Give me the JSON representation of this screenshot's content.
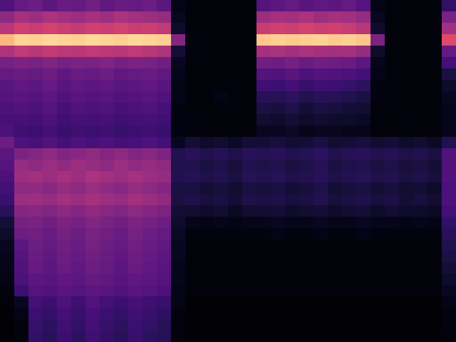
{
  "chart_data": {
    "type": "heatmap",
    "tick_labels": false,
    "color": "magma",
    "zlim": [
      0,
      100
    ],
    "z": [
      [
        25,
        30,
        32,
        28,
        31,
        30,
        33,
        29,
        31,
        30,
        32,
        28,
        4,
        2,
        2,
        2,
        2,
        2,
        26,
        28,
        30,
        27,
        29,
        28,
        30,
        26,
        4,
        2,
        2,
        2,
        2,
        18
      ],
      [
        40,
        46,
        44,
        47,
        45,
        43,
        46,
        44,
        47,
        45,
        44,
        42,
        6,
        2,
        2,
        2,
        2,
        2,
        44,
        46,
        45,
        47,
        44,
        46,
        45,
        42,
        6,
        2,
        2,
        2,
        2,
        35
      ],
      [
        50,
        56,
        54,
        57,
        55,
        53,
        56,
        55,
        57,
        54,
        55,
        52,
        8,
        2,
        2,
        2,
        2,
        2,
        54,
        56,
        55,
        57,
        55,
        56,
        54,
        50,
        8,
        2,
        2,
        2,
        2,
        45
      ],
      [
        85,
        91,
        90,
        92,
        91,
        90,
        92,
        91,
        90,
        92,
        91,
        90,
        38,
        3,
        2,
        2,
        2,
        2,
        88,
        90,
        89,
        90,
        91,
        89,
        90,
        88,
        36,
        2,
        2,
        2,
        2,
        60
      ],
      [
        48,
        52,
        50,
        53,
        51,
        50,
        52,
        51,
        50,
        52,
        50,
        48,
        10,
        3,
        2,
        2,
        2,
        2,
        46,
        47,
        45,
        47,
        46,
        45,
        46,
        42,
        8,
        2,
        2,
        2,
        2,
        30
      ],
      [
        34,
        36,
        35,
        37,
        34,
        36,
        35,
        37,
        34,
        36,
        35,
        33,
        6,
        2,
        2,
        2,
        2,
        2,
        33,
        32,
        34,
        31,
        33,
        32,
        31,
        28,
        5,
        2,
        2,
        2,
        2,
        22
      ],
      [
        30,
        31,
        30,
        32,
        29,
        31,
        30,
        32,
        29,
        30,
        31,
        29,
        5,
        2,
        2,
        2,
        2,
        2,
        26,
        25,
        27,
        24,
        26,
        25,
        24,
        22,
        4,
        2,
        2,
        2,
        2,
        12
      ],
      [
        27,
        29,
        28,
        30,
        27,
        29,
        28,
        29,
        27,
        28,
        29,
        27,
        4,
        2,
        2,
        2,
        2,
        2,
        21,
        20,
        22,
        19,
        21,
        20,
        19,
        17,
        3,
        2,
        2,
        2,
        2,
        8
      ],
      [
        26,
        27,
        26,
        28,
        25,
        27,
        26,
        27,
        25,
        26,
        27,
        25,
        4,
        2,
        2,
        4,
        2,
        2,
        16,
        15,
        17,
        14,
        16,
        15,
        14,
        12,
        3,
        2,
        2,
        2,
        2,
        6
      ],
      [
        24,
        25,
        24,
        26,
        23,
        25,
        24,
        25,
        23,
        24,
        25,
        23,
        3,
        2,
        2,
        2,
        2,
        2,
        12,
        11,
        13,
        10,
        12,
        11,
        10,
        9,
        2,
        2,
        2,
        2,
        2,
        5
      ],
      [
        23,
        23,
        22,
        24,
        21,
        23,
        22,
        23,
        21,
        22,
        23,
        21,
        3,
        3,
        2,
        2,
        2,
        2,
        9,
        8,
        10,
        8,
        9,
        8,
        8,
        7,
        2,
        2,
        3,
        2,
        2,
        5
      ],
      [
        24,
        21,
        20,
        22,
        19,
        21,
        20,
        21,
        19,
        20,
        21,
        19,
        3,
        2,
        2,
        2,
        2,
        2,
        6,
        6,
        7,
        5,
        6,
        6,
        5,
        5,
        2,
        2,
        2,
        2,
        2,
        5
      ],
      [
        32,
        24,
        23,
        25,
        22,
        24,
        23,
        24,
        22,
        23,
        24,
        22,
        6,
        10,
        8,
        9,
        7,
        10,
        10,
        11,
        9,
        10,
        12,
        9,
        10,
        11,
        9,
        10,
        8,
        9,
        7,
        14
      ],
      [
        28,
        36,
        38,
        40,
        37,
        39,
        41,
        38,
        40,
        37,
        39,
        36,
        14,
        16,
        14,
        15,
        13,
        16,
        15,
        16,
        14,
        15,
        17,
        14,
        15,
        16,
        14,
        15,
        13,
        14,
        12,
        25
      ],
      [
        26,
        42,
        40,
        43,
        41,
        44,
        42,
        40,
        43,
        41,
        42,
        40,
        14,
        14,
        12,
        13,
        11,
        14,
        13,
        14,
        12,
        13,
        15,
        12,
        13,
        14,
        12,
        13,
        11,
        12,
        10,
        25
      ],
      [
        24,
        44,
        45,
        43,
        46,
        44,
        47,
        45,
        43,
        46,
        44,
        42,
        14,
        15,
        13,
        14,
        12,
        15,
        14,
        15,
        13,
        14,
        16,
        13,
        14,
        15,
        13,
        14,
        12,
        13,
        11,
        25
      ],
      [
        22,
        40,
        41,
        39,
        42,
        40,
        43,
        41,
        39,
        42,
        40,
        38,
        12,
        12,
        10,
        11,
        9,
        12,
        11,
        12,
        10,
        11,
        13,
        10,
        11,
        12,
        10,
        11,
        9,
        10,
        8,
        24
      ],
      [
        20,
        43,
        44,
        42,
        45,
        43,
        46,
        44,
        42,
        45,
        43,
        41,
        12,
        13,
        11,
        12,
        10,
        13,
        12,
        13,
        11,
        12,
        14,
        11,
        12,
        13,
        11,
        12,
        10,
        11,
        9,
        24
      ],
      [
        16,
        38,
        39,
        37,
        40,
        38,
        41,
        39,
        37,
        40,
        38,
        36,
        10,
        9,
        8,
        9,
        7,
        9,
        9,
        10,
        8,
        9,
        10,
        8,
        9,
        10,
        8,
        9,
        8,
        8,
        7,
        22
      ],
      [
        10,
        34,
        35,
        33,
        36,
        34,
        37,
        35,
        33,
        36,
        34,
        32,
        8,
        5,
        4,
        5,
        4,
        5,
        5,
        6,
        5,
        5,
        6,
        5,
        5,
        6,
        5,
        5,
        4,
        5,
        4,
        18
      ],
      [
        8,
        32,
        33,
        31,
        34,
        32,
        35,
        33,
        31,
        34,
        32,
        30,
        7,
        3,
        3,
        3,
        3,
        3,
        3,
        4,
        3,
        3,
        4,
        3,
        3,
        4,
        3,
        3,
        3,
        3,
        3,
        16
      ],
      [
        6,
        28,
        32,
        30,
        33,
        31,
        34,
        32,
        30,
        33,
        31,
        29,
        6,
        2,
        2,
        2,
        2,
        2,
        2,
        2,
        2,
        2,
        2,
        2,
        2,
        2,
        2,
        2,
        2,
        2,
        2,
        14
      ],
      [
        5,
        26,
        31,
        29,
        32,
        30,
        33,
        31,
        29,
        32,
        30,
        28,
        6,
        2,
        2,
        2,
        2,
        2,
        2,
        2,
        2,
        2,
        2,
        2,
        2,
        2,
        2,
        2,
        2,
        2,
        2,
        12
      ],
      [
        5,
        25,
        30,
        28,
        31,
        29,
        32,
        30,
        28,
        31,
        29,
        27,
        5,
        2,
        2,
        2,
        2,
        2,
        2,
        2,
        2,
        2,
        2,
        2,
        2,
        2,
        2,
        2,
        2,
        2,
        2,
        10
      ],
      [
        4,
        24,
        28,
        27,
        29,
        28,
        30,
        29,
        27,
        29,
        28,
        26,
        5,
        2,
        2,
        2,
        2,
        2,
        2,
        2,
        2,
        2,
        2,
        2,
        2,
        2,
        2,
        2,
        2,
        2,
        2,
        8
      ],
      [
        3,
        20,
        26,
        25,
        27,
        26,
        28,
        27,
        25,
        27,
        26,
        24,
        4,
        2,
        2,
        2,
        2,
        2,
        2,
        2,
        2,
        2,
        2,
        2,
        2,
        2,
        2,
        2,
        2,
        2,
        2,
        6
      ],
      [
        2,
        6,
        22,
        20,
        24,
        21,
        25,
        22,
        20,
        23,
        21,
        19,
        4,
        1,
        1,
        1,
        1,
        1,
        1,
        1,
        1,
        1,
        1,
        1,
        1,
        1,
        1,
        1,
        1,
        1,
        1,
        4
      ],
      [
        1,
        4,
        20,
        18,
        22,
        19,
        23,
        20,
        18,
        21,
        19,
        17,
        3,
        1,
        1,
        1,
        1,
        1,
        1,
        1,
        1,
        1,
        1,
        1,
        1,
        1,
        1,
        1,
        1,
        1,
        1,
        3
      ],
      [
        1,
        3,
        19,
        17,
        21,
        18,
        22,
        19,
        17,
        20,
        18,
        16,
        3,
        1,
        1,
        1,
        1,
        1,
        1,
        1,
        1,
        1,
        1,
        1,
        1,
        1,
        1,
        1,
        1,
        1,
        1,
        3
      ],
      [
        1,
        3,
        18,
        16,
        20,
        17,
        21,
        18,
        16,
        19,
        17,
        15,
        3,
        1,
        1,
        1,
        1,
        1,
        1,
        1,
        1,
        1,
        1,
        1,
        1,
        1,
        1,
        1,
        1,
        1,
        1,
        2
      ]
    ]
  }
}
